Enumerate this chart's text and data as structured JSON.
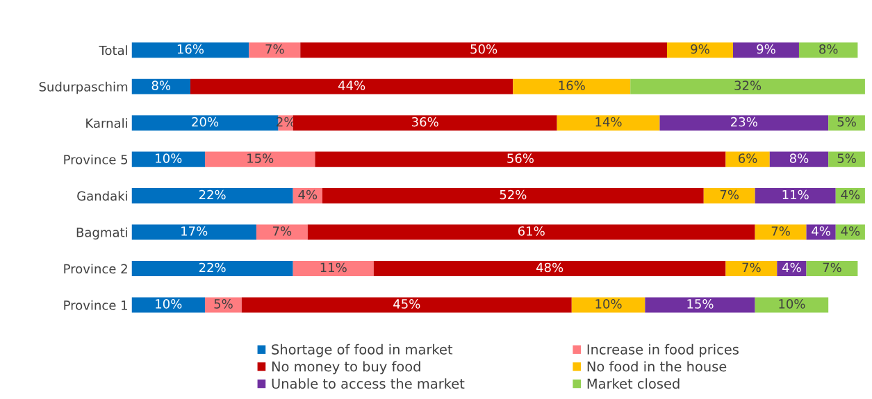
{
  "chart_data": {
    "type": "bar",
    "orientation": "horizontal",
    "stacked": true,
    "categories": [
      "Total",
      "Sudurpaschim",
      "Karnali",
      "Province 5",
      "Gandaki",
      "Bagmati",
      "Province 2",
      "Province 1"
    ],
    "series": [
      {
        "name": "Shortage of food in market",
        "color": "#0070c0",
        "values": [
          16,
          8,
          20,
          10,
          22,
          17,
          22,
          10
        ],
        "value_labels": [
          "16%",
          "8%",
          "20%",
          "10%",
          "22%",
          "17%",
          "22%",
          "10%"
        ]
      },
      {
        "name": "Increase in food prices",
        "color": "#ff7c80",
        "values": [
          7,
          null,
          2,
          15,
          4,
          7,
          11,
          5
        ],
        "value_labels": [
          "7%",
          null,
          "2%",
          "15%",
          "4%",
          "7%",
          "11%",
          "5%"
        ]
      },
      {
        "name": "No money to buy food",
        "color": "#c00000",
        "values": [
          50,
          44,
          36,
          56,
          52,
          61,
          48,
          45
        ],
        "value_labels": [
          "50%",
          "44%",
          "36%",
          "56%",
          "52%",
          "61%",
          "48%",
          "45%"
        ]
      },
      {
        "name": "No food in the house",
        "color": "#ffc000",
        "values": [
          9,
          16,
          14,
          6,
          7,
          7,
          7,
          10
        ],
        "value_labels": [
          "9%",
          "16%",
          "14%",
          "6%",
          "7%",
          "7%",
          "7%",
          "10%"
        ]
      },
      {
        "name": "Unable to access the market",
        "color": "#7030a0",
        "values": [
          9,
          null,
          23,
          8,
          11,
          4,
          4,
          15
        ],
        "value_labels": [
          "9%",
          null,
          "23%",
          "8%",
          "11%",
          "4%",
          "4%",
          "15%"
        ]
      },
      {
        "name": "Market closed",
        "color": "#92d050",
        "values": [
          8,
          32,
          5,
          5,
          4,
          4,
          7,
          10
        ],
        "value_labels": [
          "8%",
          "32%",
          "5%",
          "5%",
          "4%",
          "4%",
          "7%",
          "10%"
        ]
      }
    ],
    "legend": "bottom",
    "tick_labels": "y"
  }
}
